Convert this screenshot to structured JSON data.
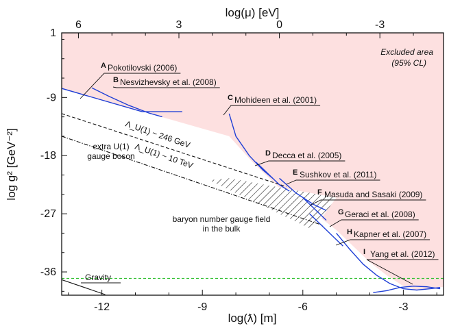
{
  "chart_data": {
    "type": "line",
    "title": "",
    "xlabel": "log(ƛ) [m]",
    "ylabel": "log g² [GeV⁻²]",
    "top_xlabel": "log(μ) [eV]",
    "xlim": [
      -13.2,
      -1.8
    ],
    "ylim": [
      -39.6,
      1
    ],
    "x_ticks": [
      "-12",
      "-9",
      "-6",
      "-3"
    ],
    "x_tick_values": [
      -12,
      -9,
      -6,
      -3
    ],
    "y_ticks": [
      "1",
      "-9",
      "-18",
      "-27",
      "-36"
    ],
    "y_tick_values": [
      1,
      -9,
      -18,
      -27,
      -36
    ],
    "top_ticks": [
      "6",
      "3",
      "0",
      "-3"
    ],
    "top_tick_values": [
      6,
      3,
      0,
      -3
    ],
    "excluded_label_1": "Excluded area",
    "excluded_label_2": "(95% CL)",
    "colors": {
      "excluded_fill": "#fde0e0",
      "constraint_line": "#1f3fd6",
      "gravity_line": "#2fbf2f",
      "text": "#111111"
    },
    "exclusion_boundary": {
      "x": [
        -13.2,
        -8.2,
        -7.5,
        -7.0,
        -6.5,
        -6.0,
        -5.5,
        -5.0,
        -4.5,
        -4.0,
        -3.5,
        -3.0,
        -2.6,
        -2.2,
        -1.8
      ],
      "y": [
        -7.6,
        -15.0,
        -19.0,
        -21.5,
        -24.0,
        -26.0,
        -27.5,
        -29.5,
        -32.0,
        -34.5,
        -36.5,
        -38.2,
        -38.8,
        -38.6,
        -38.3
      ]
    },
    "constraints": [
      {
        "letter": "A",
        "label": "Pokotilovski (2006)",
        "x": [
          -13.2,
          -10.8,
          -9.6
        ],
        "y": [
          -7.6,
          -11.2,
          -11.2
        ]
      },
      {
        "letter": "B",
        "label": "Nesvizhevsky et al. (2008)",
        "x": [
          -12.3,
          -11.8,
          -11.2,
          -10.6,
          -10.2
        ],
        "y": [
          -7.5,
          -8.8,
          -10.2,
          -11.4,
          -12.0
        ]
      },
      {
        "letter": "C",
        "label": "Mohideen et al. (2001)",
        "x": [
          -8.2,
          -8.0,
          -7.6,
          -7.2,
          -6.9
        ],
        "y": [
          -11.5,
          -15.0,
          -18.0,
          -20.2,
          -21.5
        ]
      },
      {
        "letter": "D",
        "label": "Decca et al. (2005)",
        "x": [
          -7.4,
          -7.0,
          -6.7,
          -6.4
        ],
        "y": [
          -19.0,
          -21.0,
          -22.5,
          -23.5
        ]
      },
      {
        "letter": "E",
        "label": "Sushkov et al. (2011)",
        "x": [
          -6.7,
          -6.2,
          -5.7,
          -5.3
        ],
        "y": [
          -21.5,
          -23.8,
          -25.5,
          -26.5
        ]
      },
      {
        "letter": "F",
        "label": "Masuda and Sasaki (2009)",
        "x": [
          -6.0,
          -5.6,
          -5.3
        ],
        "y": [
          -24.5,
          -26.5,
          -28.0
        ]
      },
      {
        "letter": "G",
        "label": "Geraci et al. (2008)",
        "x": [
          -5.8,
          -5.4,
          -5.1,
          -4.8
        ],
        "y": [
          -27.0,
          -29.0,
          -30.5,
          -32.0
        ]
      },
      {
        "letter": "H",
        "label": "Kapner et al. (2007)",
        "x": [
          -5.0,
          -4.6,
          -4.2,
          -3.8,
          -3.4,
          -3.0,
          -2.6,
          -2.2,
          -1.9
        ],
        "y": [
          -30.0,
          -32.5,
          -34.8,
          -36.5,
          -37.8,
          -38.6,
          -38.8,
          -38.6,
          -38.4
        ]
      },
      {
        "letter": "I",
        "label": "Yang et al. (2012)",
        "x": [
          -3.9,
          -3.5,
          -3.1,
          -2.7,
          -2.3,
          -1.9
        ],
        "y": [
          -39.2,
          -38.9,
          -38.4,
          -38.2,
          -38.3,
          -38.6
        ]
      }
    ],
    "theory_lines": [
      {
        "label": "Λ_U(1) ~ 246 GeV",
        "style": "dashed",
        "x": [
          -13.2,
          -6.5
        ],
        "y": [
          -11.5,
          -22.8
        ]
      },
      {
        "label": "Λ_U(1) ~ 10 TeV",
        "style": "dashdot",
        "x": [
          -13.2,
          -5.4
        ],
        "y": [
          -15.0,
          -28.8
        ]
      }
    ],
    "gravity": {
      "label": "Gravity",
      "x": [
        -13.2,
        -11.9
      ],
      "y": [
        -37.2,
        -39.5
      ]
    },
    "green_line": {
      "y": -37.0
    },
    "hatched_region": {
      "x": [
        -8.2,
        -5.0,
        -5.7,
        -8.8
      ],
      "y": [
        -21.5,
        -24.5,
        -29.5,
        -21.8
      ]
    },
    "region_labels": [
      {
        "lines": [
          "extra U(1)",
          "gauge boson"
        ]
      },
      {
        "lines": [
          "baryon number gauge field",
          "in the bulk"
        ]
      }
    ]
  }
}
